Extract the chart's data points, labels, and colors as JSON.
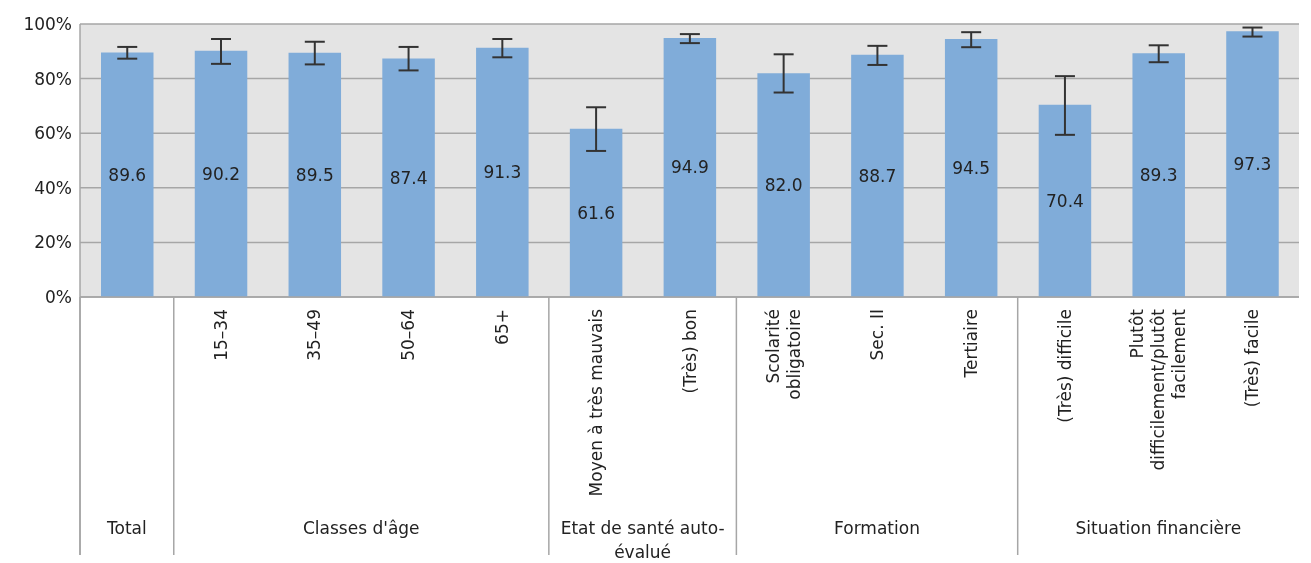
{
  "chart_data": {
    "type": "bar",
    "categories": [
      null,
      "15–34",
      "35–49",
      "50–64",
      "65+",
      "Moyen à très mauvais",
      "(Très) bon",
      "Scolarité obligatoire",
      "Sec. II",
      "Tertiaire",
      "(Très) difficile",
      "Plutôt difficilement/plutôt facilement",
      "(Très) facile"
    ],
    "values": [
      89.6,
      90.2,
      89.5,
      87.4,
      91.3,
      61.6,
      94.9,
      82.0,
      88.7,
      94.5,
      70.4,
      89.3,
      97.3
    ],
    "errors": [
      [
        87.3,
        91.6
      ],
      [
        85.4,
        94.5
      ],
      [
        85.2,
        93.5
      ],
      [
        83.0,
        91.6
      ],
      [
        87.8,
        94.5
      ],
      [
        53.5,
        69.5
      ],
      [
        93.0,
        96.3
      ],
      [
        74.9,
        88.9
      ],
      [
        85.0,
        92.0
      ],
      [
        91.5,
        97.0
      ],
      [
        59.4,
        80.9
      ],
      [
        86.0,
        92.2
      ],
      [
        95.4,
        98.7
      ]
    ],
    "color": "#80acd9",
    "value_labels": [
      "89.6",
      "90.2",
      "89.5",
      "87.4",
      "91.3",
      "61.6",
      "94.9",
      "82.0",
      "88.7",
      "94.5",
      "70.4",
      "89.3",
      "97.3"
    ],
    "ylim": [
      0,
      100
    ],
    "yticks": [
      {
        "value": 0,
        "label": "0%"
      },
      {
        "value": 20,
        "label": "20%"
      },
      {
        "value": 40,
        "label": "40%"
      },
      {
        "value": 60,
        "label": "60%"
      },
      {
        "value": 80,
        "label": "80%"
      },
      {
        "value": 100,
        "label": "100%"
      }
    ],
    "grid": "y",
    "legend": false,
    "annotations": [
      "Total",
      "Classes d'âge",
      "Etat de santé auto-évalué",
      "Formation",
      "Situation financière"
    ]
  }
}
